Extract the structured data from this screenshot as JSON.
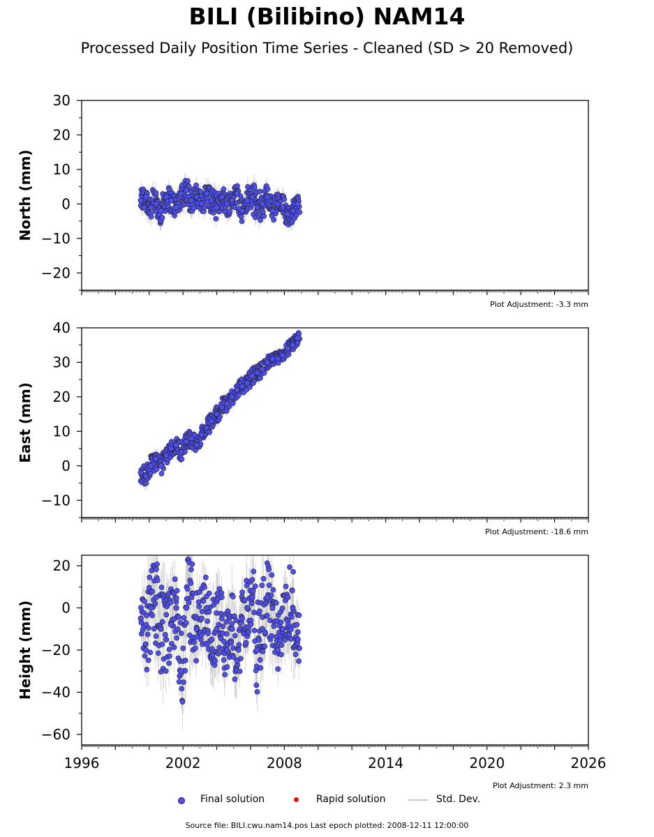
{
  "header": {
    "title": "BILI (Bilibino) NAM14",
    "subtitle": "Processed Daily Position Time Series - Cleaned (SD > 20 Removed)"
  },
  "legend": {
    "final": "Final solution",
    "rapid": "Rapid solution",
    "std": "Std. Dev."
  },
  "footer": "Source file: BILI.cwu.nam14.pos  Last epoch plotted: 2008-12-11 12:00:00",
  "colors": {
    "final": "#4f4ff0",
    "final_edge": "#222222",
    "rapid": "#e01010",
    "std": "#b4b4b4"
  },
  "chart_data": [
    {
      "type": "scatter",
      "ylabel": "North (mm)",
      "adjustment": "Plot Adjustment: -3.3 mm",
      "xlim": [
        1996,
        2026
      ],
      "ylim": [
        -25,
        30
      ],
      "yticks": [
        -20,
        -10,
        0,
        10,
        20,
        30
      ],
      "xticks": [
        1996,
        2002,
        2008,
        2014,
        2020,
        2026
      ],
      "show_xtick_labels": false,
      "series": [
        {
          "name": "Final solution",
          "x": [
            1999.5,
            1999.8,
            2000.1,
            2000.4,
            2000.7,
            2001.0,
            2001.3,
            2001.6,
            2001.9,
            2002.2,
            2002.5,
            2002.8,
            2003.1,
            2003.4,
            2003.7,
            2004.0,
            2004.3,
            2004.6,
            2004.9,
            2005.2,
            2005.5,
            2005.8,
            2006.1,
            2006.4,
            2006.7,
            2007.0,
            2007.3,
            2007.6,
            2007.9,
            2008.2,
            2008.5,
            2008.8
          ],
          "y": [
            1,
            2,
            -1,
            0,
            -2,
            2,
            1,
            -1,
            3,
            4,
            1,
            2,
            0,
            3,
            1,
            -1,
            2,
            0,
            1,
            3,
            -2,
            1,
            2,
            -1,
            0,
            2,
            -2,
            0,
            -1,
            -3,
            -2,
            0
          ]
        }
      ],
      "envelope": {
        "x": [
          1999.5,
          2000.2,
          2000.9,
          2001.6,
          2002.3,
          2003.0,
          2003.7,
          2004.4,
          2005.1,
          2005.8,
          2006.5,
          2007.2,
          2007.9,
          2008.5,
          2008.9
        ],
        "lo": [
          -6,
          -7,
          -6,
          -5,
          -5,
          -4,
          -6,
          -5,
          -6,
          -7,
          -7,
          -6,
          -7,
          -7,
          -5
        ],
        "hi": [
          6,
          8,
          5,
          6,
          8,
          7,
          6,
          6,
          5,
          6,
          8,
          5,
          5,
          3,
          3
        ]
      }
    },
    {
      "type": "scatter",
      "ylabel": "East (mm)",
      "adjustment": "Plot Adjustment: -18.6 mm",
      "xlim": [
        1996,
        2026
      ],
      "ylim": [
        -15,
        40
      ],
      "yticks": [
        -10,
        0,
        10,
        20,
        30,
        40
      ],
      "xticks": [
        1996,
        2002,
        2008,
        2014,
        2020,
        2026
      ],
      "show_xtick_labels": false,
      "series": [
        {
          "name": "Final solution",
          "x": [
            1999.5,
            1999.8,
            2000.1,
            2000.4,
            2000.7,
            2001.0,
            2001.3,
            2001.6,
            2001.9,
            2002.2,
            2002.5,
            2002.8,
            2003.1,
            2003.4,
            2003.7,
            2004.0,
            2004.3,
            2004.6,
            2004.9,
            2005.2,
            2005.5,
            2005.8,
            2006.1,
            2006.4,
            2006.7,
            2007.0,
            2007.3,
            2007.6,
            2007.9,
            2008.2,
            2008.5,
            2008.8
          ],
          "y": [
            -2,
            -3,
            0,
            2,
            0,
            3,
            5,
            6,
            4,
            7,
            8,
            6,
            9,
            11,
            13,
            15,
            17,
            18,
            20,
            22,
            23,
            24,
            26,
            27,
            28,
            30,
            31,
            31,
            32,
            34,
            35,
            37
          ]
        }
      ],
      "envelope": {
        "x": [
          1999.5,
          2000.2,
          2000.9,
          2001.6,
          2002.3,
          2003.0,
          2003.7,
          2004.4,
          2005.1,
          2005.8,
          2006.5,
          2007.2,
          2007.9,
          2008.5,
          2008.9
        ],
        "lo": [
          -6,
          -6,
          -4,
          1,
          3,
          5,
          8,
          12,
          17,
          20,
          24,
          27,
          29,
          32,
          33
        ],
        "hi": [
          2,
          3,
          4,
          9,
          11,
          12,
          16,
          20,
          24,
          27,
          31,
          32,
          35,
          38,
          39
        ]
      }
    },
    {
      "type": "scatter",
      "ylabel": "Height (mm)",
      "adjustment": "Plot Adjustment: 2.3 mm",
      "xlim": [
        1996,
        2026
      ],
      "ylim": [
        -65,
        25
      ],
      "yticks": [
        -60,
        -40,
        -20,
        0,
        20
      ],
      "xticks": [
        1996,
        2002,
        2008,
        2014,
        2020,
        2026
      ],
      "show_xtick_labels": true,
      "series": [
        {
          "name": "Final solution",
          "x": [
            1999.5,
            1999.8,
            2000.1,
            2000.4,
            2000.7,
            2001.0,
            2001.3,
            2001.6,
            2001.9,
            2002.2,
            2002.5,
            2002.8,
            2003.1,
            2003.4,
            2003.7,
            2004.0,
            2004.3,
            2004.6,
            2004.9,
            2005.2,
            2005.5,
            2005.8,
            2006.1,
            2006.4,
            2006.7,
            2007.0,
            2007.3,
            2007.6,
            2007.9,
            2008.2,
            2008.5,
            2008.8
          ],
          "y": [
            -5,
            -20,
            0,
            5,
            -10,
            -15,
            -8,
            0,
            -30,
            0,
            5,
            -10,
            -5,
            0,
            -15,
            -10,
            -5,
            -20,
            -10,
            -25,
            -5,
            0,
            5,
            -20,
            -10,
            5,
            0,
            -20,
            -10,
            5,
            0,
            -15
          ]
        }
      ],
      "envelope": {
        "x": [
          1999.5,
          2000.2,
          2000.9,
          2001.6,
          2002.3,
          2003.0,
          2003.7,
          2004.4,
          2005.1,
          2005.8,
          2006.5,
          2007.2,
          2007.9,
          2008.5,
          2008.9
        ],
        "lo": [
          -40,
          -50,
          -45,
          -35,
          -62,
          -30,
          -40,
          -35,
          -40,
          -30,
          -45,
          -35,
          -25,
          -45,
          -35
        ],
        "hi": [
          20,
          20,
          22,
          15,
          23,
          20,
          18,
          20,
          18,
          22,
          25,
          24,
          20,
          20,
          10
        ]
      }
    }
  ]
}
